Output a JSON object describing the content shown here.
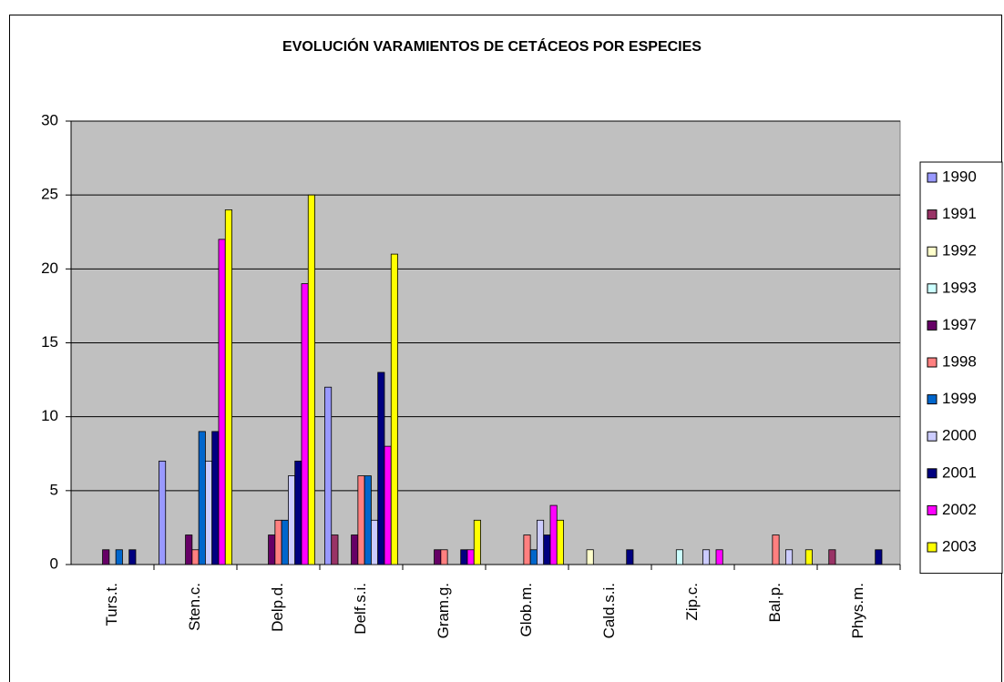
{
  "chart_data": {
    "type": "bar",
    "title": "EVOLUCIÓN VARAMIENTOS DE CETÁCEOS POR ESPECIES",
    "categories": [
      "Turs.t.",
      "Sten.c.",
      "Delp.d.",
      "Delf.s.i.",
      "Gram.g.",
      "Glob.m.",
      "Cald.s.i.",
      "Zip.c.",
      "Bal.p.",
      "Phys.m."
    ],
    "series": [
      {
        "name": "1990",
        "color": "#9999ff",
        "values": [
          0,
          7,
          0,
          12,
          0,
          0,
          0,
          0,
          0,
          0
        ]
      },
      {
        "name": "1991",
        "color": "#993366",
        "values": [
          0,
          0,
          0,
          2,
          0,
          0,
          0,
          0,
          0,
          1
        ]
      },
      {
        "name": "1992",
        "color": "#ffffcc",
        "values": [
          0,
          0,
          0,
          0,
          0,
          0,
          1,
          0,
          0,
          0
        ]
      },
      {
        "name": "1993",
        "color": "#ccffff",
        "values": [
          0,
          0,
          0,
          0,
          0,
          0,
          0,
          1,
          0,
          0
        ]
      },
      {
        "name": "1997",
        "color": "#660066",
        "values": [
          1,
          2,
          2,
          2,
          1,
          0,
          0,
          0,
          0,
          0
        ]
      },
      {
        "name": "1998",
        "color": "#ff8080",
        "values": [
          0,
          1,
          3,
          6,
          1,
          2,
          0,
          0,
          2,
          0
        ]
      },
      {
        "name": "1999",
        "color": "#0066cc",
        "values": [
          1,
          9,
          3,
          6,
          0,
          1,
          0,
          0,
          0,
          0
        ]
      },
      {
        "name": "2000",
        "color": "#ccccff",
        "values": [
          0,
          7,
          6,
          3,
          0,
          3,
          0,
          1,
          1,
          0
        ]
      },
      {
        "name": "2001",
        "color": "#000080",
        "values": [
          1,
          9,
          7,
          13,
          1,
          2,
          1,
          0,
          0,
          1
        ]
      },
      {
        "name": "2002",
        "color": "#ff00ff",
        "values": [
          0,
          22,
          19,
          8,
          1,
          4,
          0,
          1,
          0,
          0
        ]
      },
      {
        "name": "2003",
        "color": "#ffff00",
        "values": [
          0,
          24,
          25,
          21,
          3,
          3,
          0,
          0,
          1,
          0
        ]
      }
    ],
    "ylim": [
      0,
      30
    ],
    "yticks": [
      0,
      5,
      10,
      15,
      20,
      25,
      30
    ],
    "grid": true,
    "legend": "right",
    "plot_background": "#c0c0c0"
  }
}
